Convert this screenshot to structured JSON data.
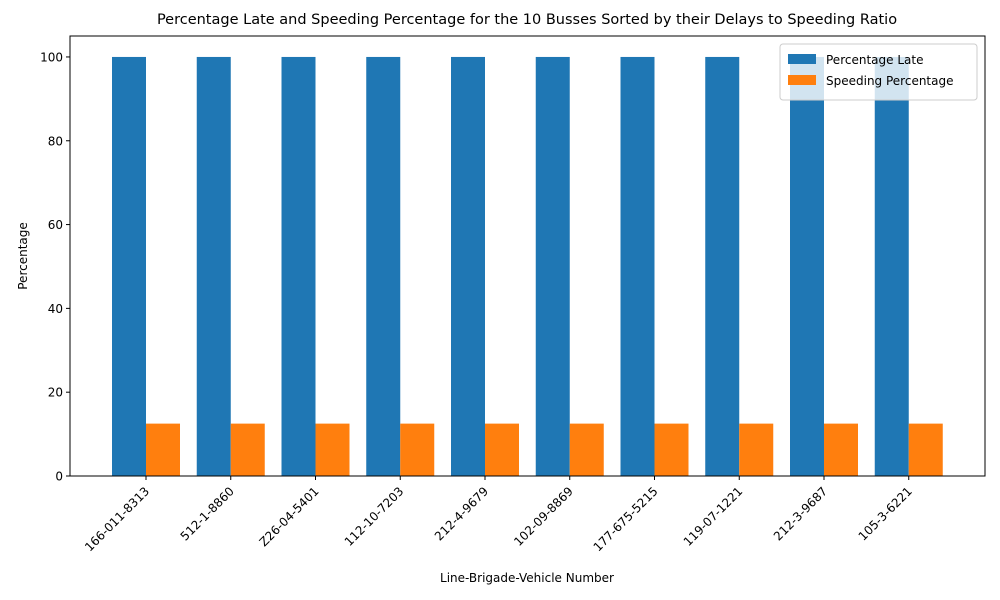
{
  "chart_data": {
    "type": "bar",
    "title": "Percentage Late and Speeding Percentage for the 10 Busses Sorted by their Delays to Speeding Ratio",
    "xlabel": "Line-Brigade-Vehicle Number",
    "ylabel": "Percentage",
    "ylim": [
      0,
      105
    ],
    "yticks": [
      0,
      20,
      40,
      60,
      80,
      100
    ],
    "grid": false,
    "legend_position": "top-right",
    "categories": [
      "166-011-8313",
      "512-1-8860",
      "Z26-04-5401",
      "112-10-7203",
      "212-4-9679",
      "102-09-8869",
      "177-675-5215",
      "119-07-1221",
      "212-3-9687",
      "105-3-6221"
    ],
    "series": [
      {
        "name": "Percentage Late",
        "color": "#1f77b4",
        "values": [
          100,
          100,
          100,
          100,
          100,
          100,
          100,
          100,
          100,
          100
        ]
      },
      {
        "name": "Speeding Percentage",
        "color": "#ff7f0e",
        "values": [
          12.5,
          12.5,
          12.5,
          12.5,
          12.5,
          12.5,
          12.5,
          12.5,
          12.5,
          12.5
        ]
      }
    ]
  }
}
